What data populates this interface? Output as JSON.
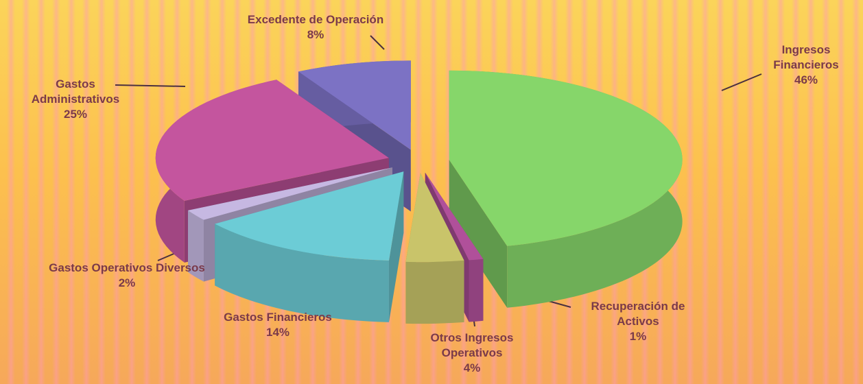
{
  "chart_data": {
    "type": "pie3d",
    "categories": [
      "Ingresos Financieros",
      "Recuperación de Activos",
      "Otros Ingresos Operativos",
      "Gastos Financieros",
      "Gastos Operativos Diversos",
      "Gastos Administrativos",
      "Excedente de Operación"
    ],
    "values": [
      46,
      1,
      4,
      14,
      2,
      25,
      8
    ],
    "value_labels": [
      "46%",
      "1%",
      "4%",
      "14%",
      "2%",
      "25%",
      "8%"
    ],
    "colors": [
      "#86d66a",
      "#b0509a",
      "#c9c46a",
      "#6cccd6",
      "#c6b8e2",
      "#c4559e",
      "#7c72c4"
    ]
  }
}
